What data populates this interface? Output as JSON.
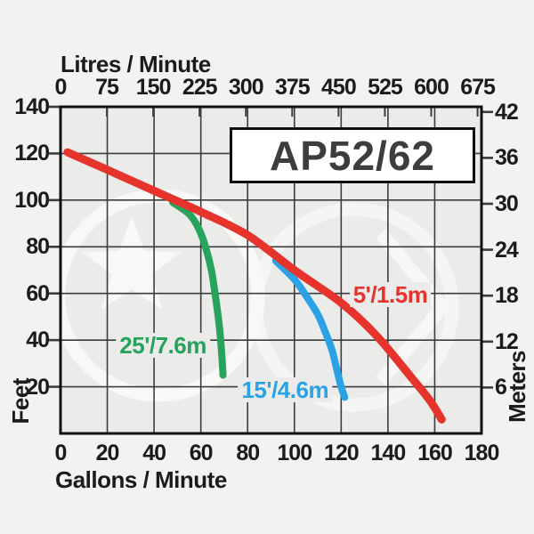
{
  "axes": {
    "top": {
      "title": "Litres / Minute",
      "ticks": [
        0,
        75,
        150,
        225,
        300,
        375,
        450,
        525,
        600,
        675
      ],
      "litres_per_gallon": 3.78541
    },
    "bottom": {
      "title": "Gallons / Minute",
      "ticks": [
        0,
        20,
        40,
        60,
        80,
        100,
        120,
        140,
        160,
        180
      ],
      "range": [
        0,
        180
      ]
    },
    "left": {
      "title": "Feet",
      "ticks": [
        20,
        40,
        60,
        80,
        100,
        120,
        140
      ],
      "range": [
        0,
        140
      ]
    },
    "right": {
      "title": "Meters",
      "ticks": [
        6,
        12,
        18,
        24,
        30,
        36,
        42
      ],
      "feet_per_meter": 3.28084
    }
  },
  "chart_data": {
    "type": "line",
    "title": "AP52/62",
    "xlabel_bottom": "Gallons / Minute",
    "xlabel_top": "Litres / Minute",
    "ylabel_left": "Feet",
    "ylabel_right": "Meters",
    "x_range_gpm": [
      0,
      180
    ],
    "y_range_ft": [
      0,
      140
    ],
    "grid": true,
    "series": [
      {
        "name": "head-5ft",
        "label": "5'/1.5m",
        "color": "#e6332c",
        "stroke_width": 9,
        "points_gpm_ft": [
          [
            3,
            120.5
          ],
          [
            20,
            113
          ],
          [
            40,
            104
          ],
          [
            60,
            95
          ],
          [
            80,
            85
          ],
          [
            100,
            70
          ],
          [
            120,
            56
          ],
          [
            135,
            42
          ],
          [
            150,
            24
          ],
          [
            158,
            14
          ],
          [
            163,
            6
          ]
        ],
        "label_at_gpm_ft": [
          141,
          59.5
        ]
      },
      {
        "name": "head-15ft",
        "label": "15'/4.6m",
        "color": "#2aa2e5",
        "stroke_width": 8,
        "points_gpm_ft": [
          [
            92,
            74
          ],
          [
            100,
            66
          ],
          [
            105,
            59
          ],
          [
            110,
            51
          ],
          [
            113,
            44
          ],
          [
            116,
            36
          ],
          [
            118,
            28
          ],
          [
            120,
            20
          ],
          [
            121.5,
            15.5
          ]
        ],
        "label_at_gpm_ft": [
          96,
          18.6
        ]
      },
      {
        "name": "head-25ft",
        "label": "25'/7.6m",
        "color": "#27a35c",
        "stroke_width": 8,
        "points_gpm_ft": [
          [
            48,
            99
          ],
          [
            55,
            94
          ],
          [
            59,
            88
          ],
          [
            62,
            80
          ],
          [
            64.5,
            70
          ],
          [
            66.5,
            57
          ],
          [
            68,
            45
          ],
          [
            69,
            33
          ],
          [
            69.5,
            25
          ]
        ],
        "label_at_gpm_ft": [
          43.8,
          37.7
        ]
      }
    ]
  },
  "colors": {
    "grid": "#3c3c3c",
    "border": "#111111",
    "plot_background": "#ebebe9",
    "page_background": "#f2f2f0",
    "text": "#1b1b1b"
  }
}
